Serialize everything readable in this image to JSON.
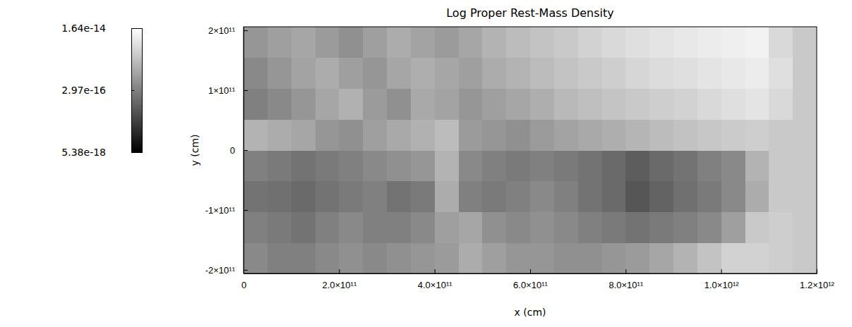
{
  "chart_data": {
    "type": "heatmap",
    "title": "Log Proper Rest-Mass Density",
    "x_label": "x (cm)",
    "y_label": "y (cm)",
    "xlim": [
      0,
      1200000000000.0
    ],
    "xticks": [
      0,
      {
        "value": 200000000000.0,
        "label": "2.0×10¹¹"
      },
      {
        "value": 400000000000.0,
        "label": "4.0×10¹¹"
      },
      {
        "value": 600000000000.0,
        "label": "6.0×10¹¹"
      },
      {
        "value": 800000000000.0,
        "label": "8.0×10¹¹"
      },
      {
        "value": 1000000000000.0,
        "label": "1.0×10¹²"
      },
      {
        "value": 1200000000000.0,
        "label": "1.2×10¹²"
      }
    ],
    "ylim": [
      -206000000000.0,
      206000000000.0
    ],
    "yticks": [
      {
        "value": -200000000000.0,
        "label": "-2×10¹¹"
      },
      {
        "value": -100000000000.0,
        "label": "-1×10¹¹"
      },
      0,
      {
        "value": 100000000000.0,
        "label": "1×10¹¹"
      },
      {
        "value": 200000000000.0,
        "label": "2×10¹¹"
      }
    ],
    "x_edges": [
      0,
      50000000000.0,
      100000000000.0,
      150000000000.0,
      200000000000.0,
      250000000000.0,
      300000000000.0,
      350000000000.0,
      400000000000.0,
      450000000000.0,
      500000000000.0,
      550000000000.0,
      600000000000.0,
      650000000000.0,
      700000000000.0,
      750000000000.0,
      800000000000.0,
      850000000000.0,
      900000000000.0,
      950000000000.0,
      1000000000000.0,
      1050000000000.0,
      1100000000000.0,
      1150000000000.0,
      1200000000000.0
    ],
    "y_edges": [
      -206000000000.0,
      -154500000000.0,
      -103000000000.0,
      -51500000000.0,
      0,
      51500000000.0,
      103000000000.0,
      154500000000.0,
      206000000000.0
    ],
    "cells": [
      [
        4e-16,
        3e-16,
        3e-16,
        4e-16,
        5e-16,
        4e-16,
        5e-16,
        6e-16,
        7e-16,
        1.2e-15,
        8e-16,
        6e-16,
        6e-16,
        5e-16,
        5e-16,
        6e-16,
        7e-16,
        1e-15,
        1.5e-15,
        2.5e-15,
        4e-15,
        4e-15,
        3.5e-15,
        3e-15
      ],
      [
        3e-16,
        2.5e-16,
        2e-16,
        3e-16,
        4e-16,
        3e-16,
        3e-16,
        4e-16,
        8e-16,
        1e-15,
        5e-16,
        4e-16,
        5e-16,
        4e-16,
        3e-16,
        2.5e-16,
        2e-16,
        2.5e-16,
        3e-16,
        4e-16,
        8e-16,
        3e-15,
        3.5e-15,
        3e-15
      ],
      [
        2e-16,
        1.8e-16,
        1.5e-16,
        2e-16,
        2.5e-16,
        3e-16,
        2e-16,
        2.5e-16,
        1.2e-15,
        3e-16,
        2.5e-16,
        3e-16,
        4e-16,
        3e-16,
        2e-16,
        1.5e-16,
        8e-17,
        1.2e-16,
        1.8e-16,
        2.5e-16,
        4e-16,
        1.2e-15,
        3e-15,
        3e-15
      ],
      [
        3e-16,
        2.5e-16,
        2e-16,
        2.5e-16,
        3e-16,
        4e-16,
        5e-16,
        6e-16,
        1.5e-15,
        4e-16,
        3e-16,
        2.5e-16,
        3e-16,
        2.5e-16,
        2e-16,
        1.5e-16,
        1e-16,
        1.5e-16,
        2e-16,
        3e-16,
        4e-16,
        1.5e-15,
        3e-15,
        3e-15
      ],
      [
        1.5e-15,
        1.2e-15,
        1e-15,
        6e-16,
        5e-16,
        8e-16,
        1.1e-15,
        1.4e-15,
        2e-15,
        7e-16,
        6e-16,
        5e-16,
        7e-16,
        9e-16,
        1.1e-15,
        1.3e-15,
        1.6e-15,
        2e-15,
        2.4e-15,
        2.8e-15,
        3.2e-15,
        3.5e-15,
        3e-15,
        3e-15
      ],
      [
        3e-16,
        4e-16,
        6e-16,
        1e-15,
        1.4e-15,
        7e-16,
        5e-16,
        1.1e-15,
        9e-16,
        6e-16,
        8e-16,
        1e-15,
        1.3e-15,
        1.8e-15,
        2.2e-15,
        2.6e-15,
        3e-15,
        3.5e-15,
        4e-15,
        5e-15,
        6e-15,
        7e-15,
        5e-15,
        3e-15
      ],
      [
        4e-16,
        6e-16,
        9e-16,
        1.2e-15,
        8e-16,
        6e-16,
        1e-15,
        1.3e-15,
        1e-15,
        8e-16,
        1.2e-15,
        1.5e-15,
        2e-15,
        2.5e-15,
        3e-15,
        3.5e-15,
        4.5e-15,
        5.5e-15,
        6e-15,
        7e-15,
        8e-15,
        9e-15,
        6e-15,
        3e-15
      ],
      [
        6e-16,
        8e-16,
        1e-15,
        7e-16,
        5e-16,
        8e-16,
        1.2e-15,
        9e-16,
        7e-16,
        1e-15,
        1.5e-15,
        2e-15,
        2.5e-15,
        3e-15,
        4e-15,
        5e-15,
        6e-15,
        7e-15,
        8e-15,
        9e-15,
        1e-14,
        1.1e-14,
        5e-15,
        3e-15
      ]
    ],
    "colorbar": {
      "range": [
        5.38e-18,
        1.64e-14
      ],
      "log": true,
      "ticks": [
        {
          "value": 5.38e-18,
          "label": "5.38e-18"
        },
        {
          "value": 2.97e-16,
          "label": "2.97e-16"
        },
        {
          "value": 1.64e-14,
          "label": "1.64e-14"
        }
      ]
    }
  }
}
